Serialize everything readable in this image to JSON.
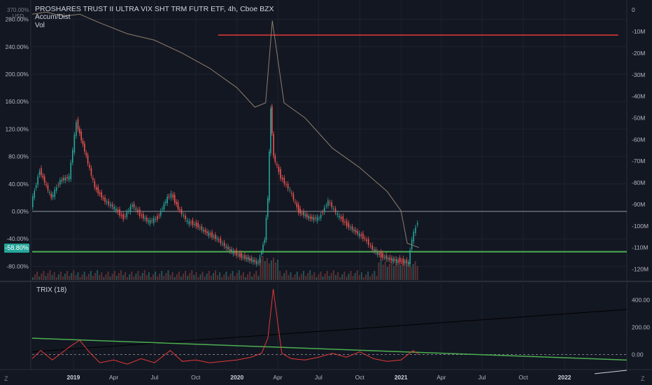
{
  "header": {
    "title": "PROSHARES TRUST II ULTRA VIX SHT TRM FUTR ETF, 4h, Cboe BZX",
    "indicators": [
      "Accum/Dist",
      "Vol"
    ],
    "currency_line1": "370.00%",
    "currency_line2": "USD",
    "price_badge": "-58.80%"
  },
  "subpanel": {
    "label": "TRIX (18)"
  },
  "bottom_icons": {
    "left": "Z",
    "right": "Z"
  },
  "colors": {
    "background": "#131722",
    "grid": "#1f2330",
    "ad_line": "#8c7f6c",
    "candle_up": "#26a69a",
    "candle_down": "#ef5350",
    "trix_line": "#e53935",
    "trend_green": "#4caf50",
    "resistance_red": "#e53935",
    "badge": "#26a69a"
  },
  "chart_data": [
    {
      "type": "line",
      "name_in_chart": "price",
      "y_axis_left_ticks": [
        "280.00%",
        "240.00%",
        "200.00%",
        "160.00%",
        "120.00%",
        "80.00%",
        "40.00%",
        "0.00%",
        "-40.00%",
        "-80.00%"
      ],
      "y_axis_right_ticks": [
        "0",
        "-10M",
        "-20M",
        "-30M",
        "-40M",
        "-50M",
        "-60M",
        "-70M",
        "-80M",
        "-90M",
        "-100M",
        "-110M",
        "-120M"
      ],
      "x_ticks": [
        "2019",
        "Apr",
        "Jul",
        "Oct",
        "2020",
        "Apr",
        "Jul",
        "Oct",
        "2021",
        "Apr",
        "Jul",
        "Oct",
        "2022"
      ],
      "ylim_percent": [
        -100,
        300
      ],
      "ylim_ad_millions": [
        -125,
        2
      ],
      "price_percent": {
        "x": [
          "2018-10-01",
          "2018-10-20",
          "2018-11-15",
          "2018-12-05",
          "2018-12-25",
          "2019-01-10",
          "2019-02-01",
          "2019-02-20",
          "2019-03-15",
          "2019-04-05",
          "2019-04-25",
          "2019-05-15",
          "2019-06-01",
          "2019-06-20",
          "2019-07-10",
          "2019-08-01",
          "2019-08-10",
          "2019-08-25",
          "2019-09-15",
          "2019-10-05",
          "2019-10-25",
          "2019-11-20",
          "2019-12-15",
          "2020-01-10",
          "2020-02-01",
          "2020-02-20",
          "2020-03-05",
          "2020-03-12",
          "2020-03-18",
          "2020-03-25",
          "2020-04-10",
          "2020-05-01",
          "2020-05-20",
          "2020-06-15",
          "2020-07-05",
          "2020-07-25",
          "2020-08-15",
          "2020-09-05",
          "2020-09-25",
          "2020-10-15",
          "2020-11-01",
          "2020-11-20",
          "2020-12-10",
          "2021-01-01",
          "2021-01-20",
          "2021-01-28",
          "2021-02-10"
        ],
        "values": [
          10,
          60,
          20,
          45,
          50,
          130,
          80,
          35,
          15,
          5,
          -10,
          10,
          -5,
          -15,
          -10,
          20,
          25,
          5,
          -15,
          -20,
          -30,
          -40,
          -55,
          -65,
          -70,
          -75,
          -40,
          20,
          150,
          80,
          50,
          30,
          0,
          -10,
          -10,
          15,
          -5,
          -20,
          -30,
          -40,
          -55,
          -65,
          -70,
          -72,
          -75,
          -40,
          -15
        ]
      },
      "accum_dist_millions": {
        "x": [
          "2018-10-01",
          "2018-11-01",
          "2018-12-10",
          "2019-01-15",
          "2019-03-01",
          "2019-05-01",
          "2019-07-01",
          "2019-09-01",
          "2019-11-01",
          "2020-01-01",
          "2020-02-10",
          "2020-03-05",
          "2020-03-20",
          "2020-04-15",
          "2020-06-01",
          "2020-08-01",
          "2020-10-01",
          "2020-12-01",
          "2021-01-01",
          "2021-01-15",
          "2021-02-10"
        ],
        "values": [
          -2,
          -1,
          -3,
          -2,
          -6,
          -11,
          -14,
          -20,
          -27,
          -36,
          -45,
          -43,
          -5,
          -43,
          -50,
          -64,
          -73,
          -84,
          -93,
          -108,
          -110
        ]
      },
      "volume_relative": {
        "note": "histogram at bottom of main pane"
      },
      "levels": {
        "horizontal_percent": [
          0,
          -58.8
        ],
        "red_resistance_percent": 257
      }
    },
    {
      "type": "line",
      "name_in_chart": "TRIX (18)",
      "y_axis_right_ticks": [
        "400.00",
        "200.00",
        "0.00"
      ],
      "ylim": [
        -110,
        520
      ],
      "trix": {
        "x": [
          "2018-10-01",
          "2018-10-20",
          "2018-11-15",
          "2018-12-05",
          "2018-12-25",
          "2019-01-15",
          "2019-02-05",
          "2019-03-01",
          "2019-04-01",
          "2019-05-01",
          "2019-06-01",
          "2019-07-01",
          "2019-08-05",
          "2019-09-01",
          "2019-10-01",
          "2019-11-01",
          "2019-12-01",
          "2020-01-01",
          "2020-02-01",
          "2020-02-25",
          "2020-03-10",
          "2020-03-22",
          "2020-04-10",
          "2020-05-01",
          "2020-06-01",
          "2020-07-01",
          "2020-08-01",
          "2020-09-01",
          "2020-10-01",
          "2020-11-01",
          "2020-12-01",
          "2021-01-01",
          "2021-01-28",
          "2021-02-10"
        ],
        "values": [
          -30,
          30,
          -40,
          10,
          60,
          105,
          20,
          -60,
          -40,
          -70,
          -30,
          -60,
          30,
          -50,
          -40,
          -60,
          -50,
          -40,
          -20,
          10,
          120,
          480,
          10,
          -30,
          -40,
          -20,
          10,
          -20,
          20,
          -30,
          -50,
          -40,
          30,
          0
        ]
      }
    }
  ]
}
